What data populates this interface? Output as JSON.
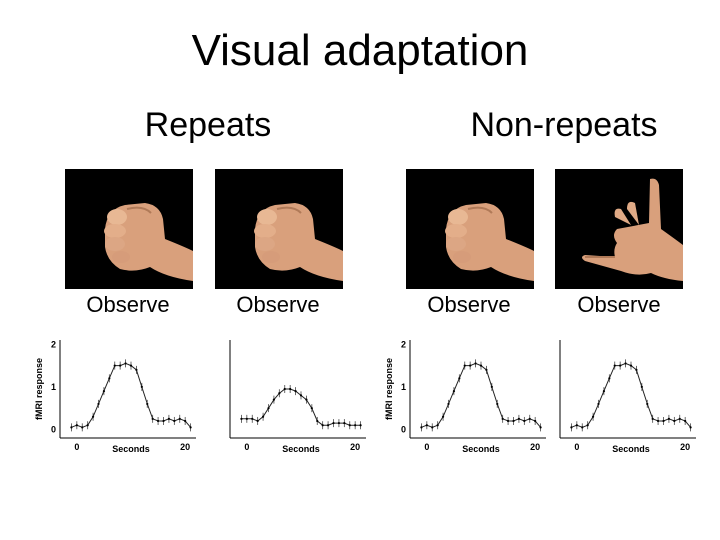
{
  "slide": {
    "title": "Visual adaptation",
    "groups": [
      {
        "title": "Repeats"
      },
      {
        "title": "Non-repeats"
      }
    ]
  },
  "panels": [
    {
      "photo": "fist-photo",
      "caption": "Observe"
    },
    {
      "photo": "fist-photo",
      "caption": "Observe"
    },
    {
      "photo": "fist-photo",
      "caption": "Observe"
    },
    {
      "photo": "open-hand-gesture-photo",
      "caption": "Observe"
    }
  ],
  "chart_data": [
    {
      "type": "line",
      "ylabel": "fMRI response",
      "xlabel": "Seconds",
      "x_ticks": [
        "0",
        "20"
      ],
      "y_ticks": [
        "0",
        "1",
        "2"
      ],
      "xlim": [
        -2,
        22
      ],
      "ylim": [
        -0.2,
        2.1
      ],
      "x": [
        -1,
        0,
        1,
        2,
        3,
        4,
        5,
        6,
        7,
        8,
        9,
        10,
        11,
        12,
        13,
        14,
        15,
        16,
        17,
        18,
        19,
        20,
        21
      ],
      "series": [
        {
          "values": [
            0.05,
            0.1,
            0.05,
            0.1,
            0.3,
            0.6,
            0.9,
            1.2,
            1.5,
            1.5,
            1.55,
            1.5,
            1.4,
            1.0,
            0.6,
            0.25,
            0.2,
            0.2,
            0.25,
            0.2,
            0.25,
            0.2,
            0.05
          ]
        }
      ]
    },
    {
      "type": "line",
      "xlabel": "Seconds",
      "x_ticks": [
        "0",
        "20"
      ],
      "xlim": [
        -2,
        22
      ],
      "ylim": [
        -0.2,
        2.1
      ],
      "x": [
        -1,
        0,
        1,
        2,
        3,
        4,
        5,
        6,
        7,
        8,
        9,
        10,
        11,
        12,
        13,
        14,
        15,
        16,
        17,
        18,
        19,
        20,
        21
      ],
      "series": [
        {
          "values": [
            0.25,
            0.25,
            0.25,
            0.2,
            0.3,
            0.5,
            0.7,
            0.85,
            0.95,
            0.95,
            0.9,
            0.8,
            0.7,
            0.5,
            0.2,
            0.1,
            0.1,
            0.15,
            0.15,
            0.15,
            0.1,
            0.1,
            0.1
          ]
        }
      ]
    },
    {
      "type": "line",
      "ylabel": "fMRI response",
      "xlabel": "Seconds",
      "x_ticks": [
        "0",
        "20"
      ],
      "y_ticks": [
        "0",
        "1",
        "2"
      ],
      "xlim": [
        -2,
        22
      ],
      "ylim": [
        -0.2,
        2.1
      ],
      "x": [
        -1,
        0,
        1,
        2,
        3,
        4,
        5,
        6,
        7,
        8,
        9,
        10,
        11,
        12,
        13,
        14,
        15,
        16,
        17,
        18,
        19,
        20,
        21
      ],
      "series": [
        {
          "values": [
            0.05,
            0.1,
            0.05,
            0.1,
            0.3,
            0.6,
            0.9,
            1.2,
            1.5,
            1.5,
            1.55,
            1.5,
            1.4,
            1.0,
            0.6,
            0.25,
            0.2,
            0.2,
            0.25,
            0.2,
            0.25,
            0.2,
            0.05
          ]
        }
      ]
    },
    {
      "type": "line",
      "xlabel": "Seconds",
      "x_ticks": [
        "0",
        "20"
      ],
      "xlim": [
        -2,
        22
      ],
      "ylim": [
        -0.2,
        2.1
      ],
      "x": [
        -1,
        0,
        1,
        2,
        3,
        4,
        5,
        6,
        7,
        8,
        9,
        10,
        11,
        12,
        13,
        14,
        15,
        16,
        17,
        18,
        19,
        20,
        21
      ],
      "series": [
        {
          "values": [
            0.05,
            0.1,
            0.05,
            0.1,
            0.3,
            0.6,
            0.9,
            1.2,
            1.5,
            1.5,
            1.55,
            1.5,
            1.4,
            1.0,
            0.6,
            0.25,
            0.2,
            0.2,
            0.25,
            0.2,
            0.25,
            0.2,
            0.05
          ]
        }
      ]
    }
  ]
}
